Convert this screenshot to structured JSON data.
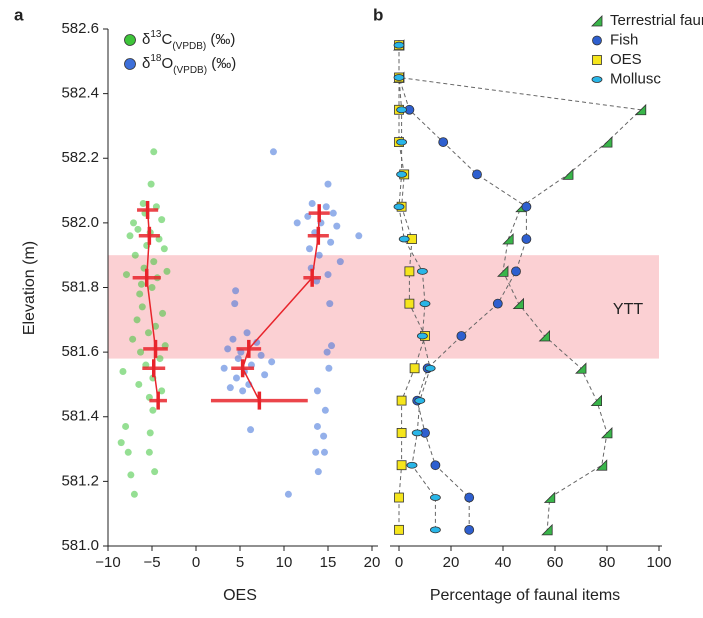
{
  "chart_data": [
    {
      "type": "scatter",
      "label": "a",
      "xlabel": "OES",
      "ylabel": "Elevation (m)",
      "xlim": [
        -10,
        20
      ],
      "xticks": [
        {
          "value": -10,
          "label": "−10"
        },
        {
          "value": -5,
          "label": "−5"
        },
        0,
        5,
        10,
        15,
        20
      ],
      "ylim": [
        581.0,
        582.6
      ],
      "yticks": [
        {
          "value": 581.0,
          "label": "581.0"
        },
        581.2,
        581.4,
        581.6,
        581.8,
        {
          "value": 582.0,
          "label": "582.0"
        },
        582.2,
        582.4,
        582.6
      ],
      "series": [
        {
          "name": "δ13C(VPDB) (‰)",
          "color": "#3ec43a",
          "x": [
            -4.8,
            -5.1,
            -6.1,
            -6.4,
            -8.0,
            -5.2,
            -7.7,
            -5.3,
            -7.4,
            -4.7,
            -7.0,
            -8.5,
            -4.9,
            -6.0,
            -4.5,
            -5.8,
            -7.1,
            -3.9,
            -6.6,
            -5.2,
            -4.2,
            -7.5,
            -5.6,
            -3.6,
            -6.9,
            -4.8,
            -5.9,
            -3.3,
            -7.9,
            -4.4,
            -6.2,
            -5.0,
            -3.8,
            -6.7,
            -4.6,
            -5.4,
            -7.2,
            -3.5,
            -6.3,
            -4.1,
            -5.7,
            -8.3,
            -4.9,
            -6.5,
            -3.9,
            -5.3
          ],
          "values": [
            582.22,
            582.12,
            581.74,
            581.78,
            581.37,
            581.35,
            581.29,
            581.29,
            581.22,
            581.23,
            581.16,
            581.32,
            581.42,
            582.06,
            582.05,
            582.03,
            582.0,
            582.01,
            581.98,
            581.97,
            581.95,
            581.96,
            581.93,
            581.92,
            581.9,
            581.88,
            581.86,
            581.85,
            581.84,
            581.83,
            581.81,
            581.8,
            581.72,
            581.7,
            581.68,
            581.66,
            581.64,
            581.62,
            581.6,
            581.58,
            581.56,
            581.54,
            581.52,
            581.5,
            581.48,
            581.46
          ]
        },
        {
          "name": "δ18O(VPDB) (‰)",
          "color": "#3d6fd9",
          "x": [
            8.8,
            15.0,
            4.5,
            4.4,
            15.2,
            6.2,
            13.8,
            14.5,
            13.6,
            14.6,
            13.9,
            10.5,
            14.7,
            13.8,
            13.2,
            14.8,
            15.6,
            12.7,
            14.2,
            16.0,
            13.5,
            18.5,
            11.5,
            15.3,
            12.9,
            14.0,
            16.4,
            13.1,
            15.0,
            13.7,
            15.4,
            14.9,
            15.1,
            5.8,
            4.2,
            6.9,
            3.6,
            5.1,
            7.4,
            4.8,
            6.3,
            3.2,
            5.5,
            7.8,
            4.6,
            6.0,
            3.9,
            5.3,
            8.6
          ],
          "values": [
            582.22,
            582.12,
            581.79,
            581.75,
            581.75,
            581.36,
            581.37,
            581.34,
            581.29,
            581.29,
            581.23,
            581.16,
            581.42,
            581.48,
            582.06,
            582.05,
            582.03,
            582.02,
            582.0,
            581.99,
            581.97,
            581.96,
            582.0,
            581.94,
            581.92,
            581.9,
            581.88,
            581.86,
            581.84,
            581.82,
            581.62,
            581.6,
            581.55,
            581.66,
            581.64,
            581.63,
            581.61,
            581.6,
            581.59,
            581.58,
            581.56,
            581.55,
            581.54,
            581.53,
            581.52,
            581.5,
            581.49,
            581.48,
            581.57
          ]
        }
      ],
      "error_bars": [
        {
          "color": "#e8242b",
          "x": [
            -5.5,
            -5.3,
            -5.6,
            -4.6,
            -4.8,
            -4.3
          ],
          "values": [
            582.04,
            581.96,
            581.83,
            581.61,
            581.55,
            581.45
          ],
          "xerr": [
            1.2,
            1.2,
            1.6,
            1.4,
            1.3,
            1.0
          ]
        },
        {
          "color": "#e8242b",
          "x": [
            14.0,
            13.9,
            13.2,
            6.0,
            5.3,
            7.2
          ],
          "values": [
            582.03,
            581.96,
            581.83,
            581.61,
            581.55,
            581.45
          ],
          "xerr": [
            1.2,
            1.2,
            1.0,
            1.4,
            1.3,
            5.5
          ]
        }
      ]
    },
    {
      "type": "line",
      "label": "b",
      "xlabel": "Percentage of faunal items",
      "xlim": [
        0,
        100
      ],
      "xticks": [
        0,
        20,
        40,
        60,
        80,
        100
      ],
      "ylim": [
        581.0,
        582.6
      ],
      "y": [
        582.55,
        582.45,
        582.35,
        582.25,
        582.15,
        582.05,
        581.95,
        581.85,
        581.75,
        581.65,
        581.55,
        581.45,
        581.35,
        581.25,
        581.15,
        581.05
      ],
      "band": {
        "text": "YTT",
        "ymin": 581.58,
        "ymax": 581.9,
        "color": "#fbd0d3"
      },
      "series": [
        {
          "name": "Terrestrial fauna",
          "color": "#39b54a",
          "marker": "triangle",
          "values": [
            0,
            0,
            93,
            80,
            65,
            47,
            42,
            40,
            46,
            56,
            70,
            76,
            80,
            78,
            58,
            57
          ]
        },
        {
          "name": "Fish",
          "color": "#2e5fcf",
          "marker": "circle",
          "values": [
            0,
            0,
            4,
            17,
            30,
            49,
            49,
            45,
            38,
            24,
            11,
            7,
            10,
            14,
            27,
            27
          ]
        },
        {
          "name": "OES",
          "color": "#f5e51c",
          "marker": "square",
          "values": [
            0,
            0,
            0,
            0,
            2,
            1,
            5,
            4,
            4,
            10,
            6,
            1,
            1,
            1,
            0,
            0
          ]
        },
        {
          "name": "Mollusc",
          "color": "#29b6e8",
          "marker": "ellipse",
          "values": [
            0,
            0,
            1,
            1,
            1,
            0,
            2,
            9,
            10,
            9,
            12,
            8,
            7,
            5,
            14,
            14
          ]
        }
      ]
    }
  ]
}
